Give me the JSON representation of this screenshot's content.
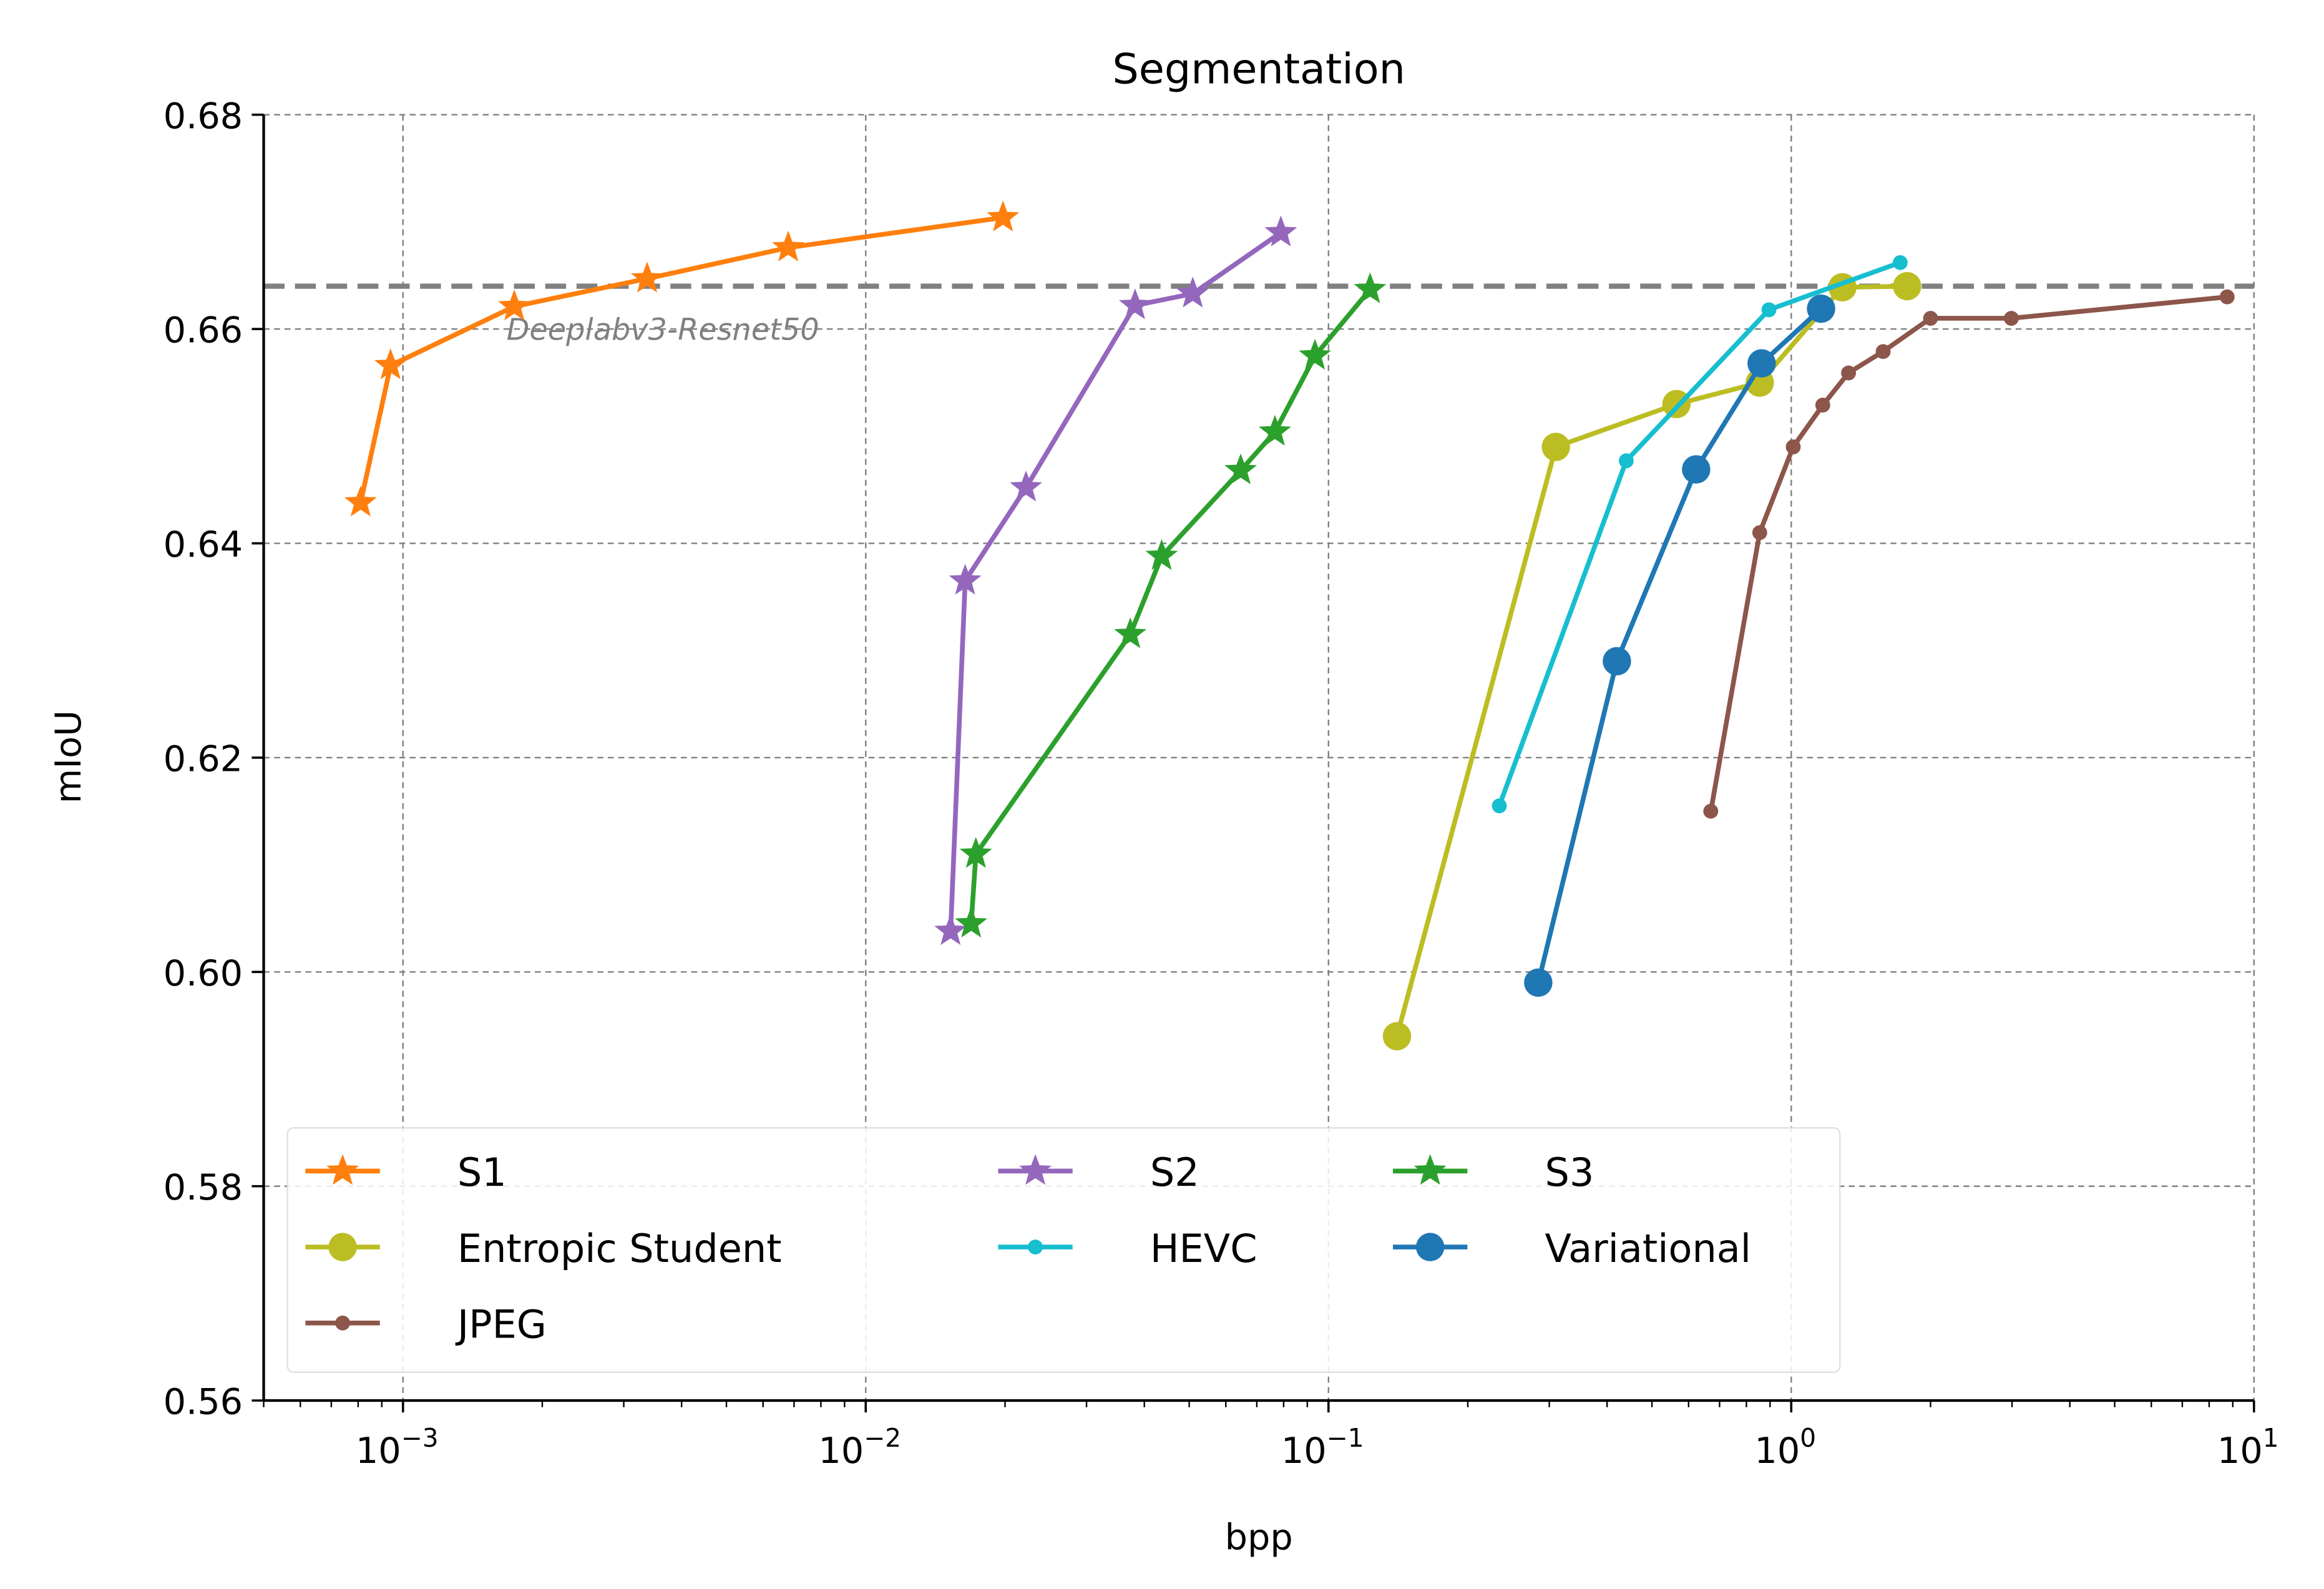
{
  "chart_data": {
    "type": "line",
    "title": "Segmentation",
    "xlabel": "bpp",
    "ylabel": "mIoU",
    "xscale": "log",
    "xlim": [
      0.0005,
      10
    ],
    "ylim": [
      0.56,
      0.68
    ],
    "grid": true,
    "legend_placement": "lower-left",
    "legend_columns": 3,
    "x_ticks": [
      {
        "value": 0.001,
        "base": "10",
        "exp": "−3"
      },
      {
        "value": 0.01,
        "base": "10",
        "exp": "−2"
      },
      {
        "value": 0.1,
        "base": "10",
        "exp": "−1"
      },
      {
        "value": 1,
        "base": "10",
        "exp": "0"
      },
      {
        "value": 10,
        "base": "10",
        "exp": "1"
      }
    ],
    "y_ticks": [
      {
        "value": 0.56,
        "label": "0.56"
      },
      {
        "value": 0.58,
        "label": "0.58"
      },
      {
        "value": 0.6,
        "label": "0.60"
      },
      {
        "value": 0.62,
        "label": "0.62"
      },
      {
        "value": 0.64,
        "label": "0.64"
      },
      {
        "value": 0.66,
        "label": "0.66"
      },
      {
        "value": 0.68,
        "label": "0.68"
      }
    ],
    "baseline": {
      "label": "Deeplabv3-Resnet50",
      "value": 0.664,
      "color": "#808080"
    },
    "series": [
      {
        "name": "S1",
        "color": "#ff7f0e",
        "marker": "star",
        "x": [
          0.00081,
          0.00094,
          0.00174,
          0.00337,
          0.0068,
          0.0198
        ],
        "y": [
          0.6438,
          0.6566,
          0.6621,
          0.6647,
          0.6676,
          0.6704
        ]
      },
      {
        "name": "S2",
        "color": "#9467bd",
        "marker": "star",
        "x": [
          0.01525,
          0.0164,
          0.0222,
          0.0382,
          0.0509,
          0.0789
        ],
        "y": [
          0.6038,
          0.6365,
          0.6452,
          0.6622,
          0.6633,
          0.669
        ]
      },
      {
        "name": "S3",
        "color": "#2ca02c",
        "marker": "star",
        "x": [
          0.0169,
          0.0173,
          0.0373,
          0.0436,
          0.0646,
          0.0766,
          0.0935,
          0.123
        ],
        "y": [
          0.6045,
          0.611,
          0.6315,
          0.6388,
          0.6468,
          0.6504,
          0.6575,
          0.6637
        ]
      },
      {
        "name": "Entropic Student",
        "color": "#bcbd22",
        "marker": "big-circle",
        "x": [
          0.1406,
          0.31,
          0.565,
          0.855,
          1.29,
          1.78
        ],
        "y": [
          0.594,
          0.649,
          0.653,
          0.655,
          0.6639,
          0.664
        ]
      },
      {
        "name": "HEVC",
        "color": "#17becf",
        "marker": "small-circle",
        "x": [
          0.234,
          0.44,
          0.895,
          1.72
        ],
        "y": [
          0.6155,
          0.6477,
          0.6618,
          0.6662
        ]
      },
      {
        "name": "Variational",
        "color": "#1f77b4",
        "marker": "big-circle",
        "x": [
          0.284,
          0.42,
          0.623,
          0.863,
          1.16
        ],
        "y": [
          0.599,
          0.629,
          0.6469,
          0.6568,
          0.6619
        ]
      },
      {
        "name": "JPEG",
        "color": "#8c564b",
        "marker": "small-circle",
        "x": [
          0.67,
          0.855,
          1.01,
          1.17,
          1.33,
          1.58,
          2.0,
          2.99,
          8.75
        ],
        "y": [
          0.615,
          0.641,
          0.649,
          0.6529,
          0.6559,
          0.6579,
          0.661,
          0.661,
          0.663
        ]
      }
    ]
  }
}
